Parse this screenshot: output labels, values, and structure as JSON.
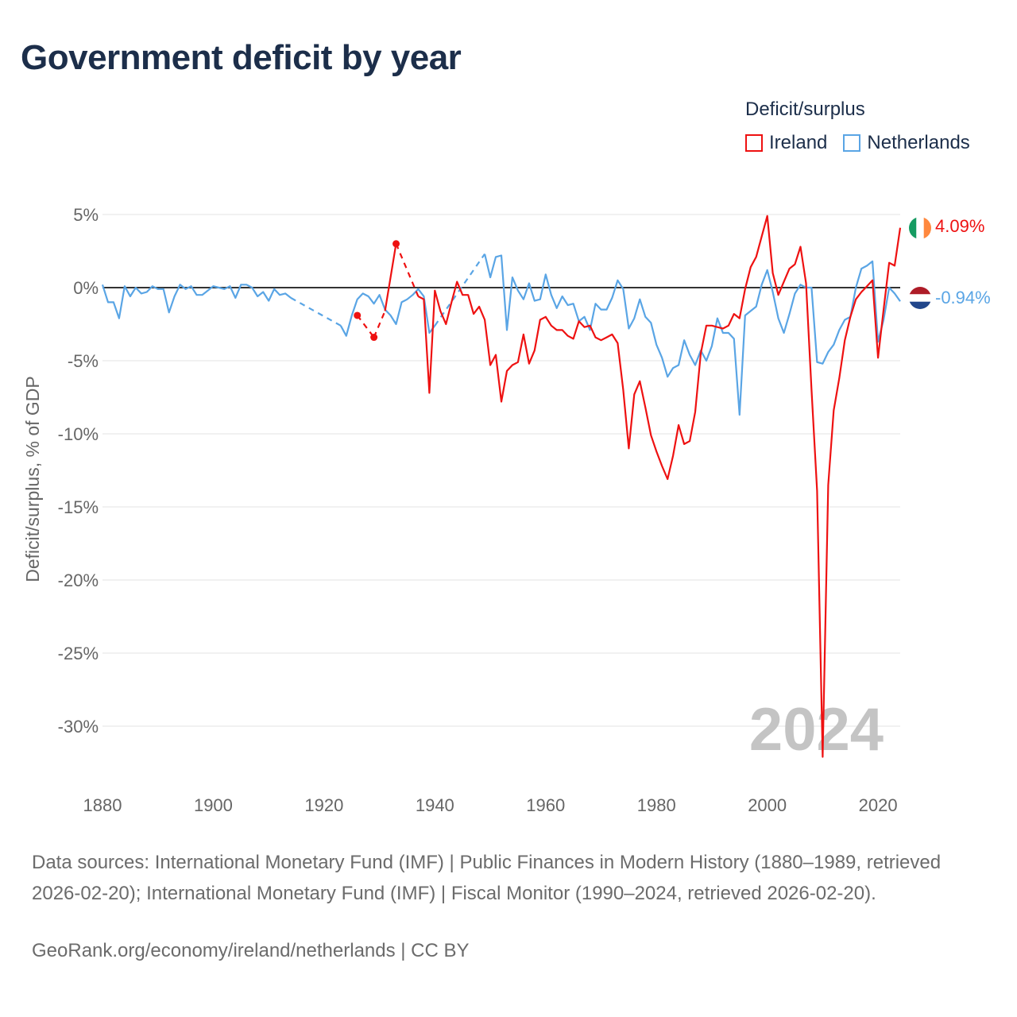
{
  "title": "Government deficit by year",
  "legend": {
    "title": "Deficit/surplus",
    "items": [
      {
        "label": "Ireland",
        "color": "#ee1111"
      },
      {
        "label": "Netherlands",
        "color": "#5aa5e5"
      }
    ]
  },
  "year_watermark": "2024",
  "end_labels": {
    "ireland": "4.09%",
    "netherlands": "-0.94%"
  },
  "footer": {
    "sources": "Data sources: International Monetary Fund (IMF) | Public Finances in Modern History (1880–1989, retrieved 2026-02-20); International Monetary Fund (IMF) | Fiscal Monitor (1990–2024, retrieved 2026-02-20).",
    "credit": "GeoRank.org/economy/ireland/netherlands | CC BY"
  },
  "chart_data": {
    "type": "line",
    "title": "Government deficit by year",
    "xlabel": "",
    "ylabel": "Deficit/surplus, % of GDP",
    "xlim": [
      1880,
      2024
    ],
    "ylim": [
      -35,
      5
    ],
    "x_ticks": [
      1880,
      1900,
      1920,
      1940,
      1960,
      1980,
      2000,
      2020
    ],
    "x_tick_labels": [
      "1880",
      "1900",
      "1920",
      "1940",
      "1960",
      "1980",
      "2000",
      "2020"
    ],
    "y_ticks": [
      5,
      0,
      -5,
      -10,
      -15,
      -20,
      -25,
      -30
    ],
    "y_tick_labels": [
      "5%",
      "0%",
      "-5%",
      "-10%",
      "-15%",
      "-20%",
      "-25%",
      "-30%"
    ],
    "grid": true,
    "legend_position": "top-right",
    "series": [
      {
        "name": "Ireland",
        "color": "#ee1111",
        "points": [
          [
            1926,
            -1.9
          ],
          [
            1929,
            -3.4
          ],
          [
            1931,
            -1.6
          ],
          [
            1933,
            3.0
          ],
          [
            1937,
            -0.6
          ],
          [
            1938,
            -0.8
          ],
          [
            1939,
            -7.2
          ],
          [
            1940,
            -0.2
          ],
          [
            1941,
            -1.6
          ],
          [
            1942,
            -2.5
          ],
          [
            1943,
            -1.0
          ],
          [
            1944,
            0.4
          ],
          [
            1945,
            -0.5
          ],
          [
            1946,
            -0.5
          ],
          [
            1947,
            -1.8
          ],
          [
            1948,
            -1.3
          ],
          [
            1949,
            -2.2
          ],
          [
            1950,
            -5.3
          ],
          [
            1951,
            -4.6
          ],
          [
            1952,
            -7.8
          ],
          [
            1953,
            -5.7
          ],
          [
            1954,
            -5.3
          ],
          [
            1955,
            -5.1
          ],
          [
            1956,
            -3.2
          ],
          [
            1957,
            -5.2
          ],
          [
            1958,
            -4.3
          ],
          [
            1959,
            -2.2
          ],
          [
            1960,
            -2.0
          ],
          [
            1961,
            -2.6
          ],
          [
            1962,
            -2.9
          ],
          [
            1963,
            -2.9
          ],
          [
            1964,
            -3.3
          ],
          [
            1965,
            -3.5
          ],
          [
            1966,
            -2.3
          ],
          [
            1967,
            -2.7
          ],
          [
            1968,
            -2.6
          ],
          [
            1969,
            -3.4
          ],
          [
            1970,
            -3.6
          ],
          [
            1971,
            -3.4
          ],
          [
            1972,
            -3.2
          ],
          [
            1973,
            -3.8
          ],
          [
            1974,
            -7.0
          ],
          [
            1975,
            -11.0
          ],
          [
            1976,
            -7.3
          ],
          [
            1977,
            -6.4
          ],
          [
            1978,
            -8.2
          ],
          [
            1979,
            -10.1
          ],
          [
            1980,
            -11.2
          ],
          [
            1981,
            -12.2
          ],
          [
            1982,
            -13.1
          ],
          [
            1983,
            -11.5
          ],
          [
            1984,
            -9.4
          ],
          [
            1985,
            -10.7
          ],
          [
            1986,
            -10.5
          ],
          [
            1987,
            -8.5
          ],
          [
            1988,
            -4.5
          ],
          [
            1989,
            -2.6
          ],
          [
            1990,
            -2.6
          ],
          [
            1991,
            -2.7
          ],
          [
            1992,
            -2.8
          ],
          [
            1993,
            -2.6
          ],
          [
            1994,
            -1.8
          ],
          [
            1995,
            -2.1
          ],
          [
            1996,
            -0.1
          ],
          [
            1997,
            1.4
          ],
          [
            1998,
            2.1
          ],
          [
            1999,
            3.5
          ],
          [
            2000,
            4.9
          ],
          [
            2001,
            1.0
          ],
          [
            2002,
            -0.5
          ],
          [
            2003,
            0.4
          ],
          [
            2004,
            1.3
          ],
          [
            2005,
            1.6
          ],
          [
            2006,
            2.8
          ],
          [
            2007,
            0.3
          ],
          [
            2008,
            -7.0
          ],
          [
            2009,
            -13.9
          ],
          [
            2010,
            -32.1
          ],
          [
            2011,
            -13.5
          ],
          [
            2012,
            -8.4
          ],
          [
            2013,
            -6.2
          ],
          [
            2014,
            -3.6
          ],
          [
            2015,
            -2.0
          ],
          [
            2016,
            -0.8
          ],
          [
            2017,
            -0.3
          ],
          [
            2018,
            0.1
          ],
          [
            2019,
            0.5
          ],
          [
            2020,
            -4.8
          ],
          [
            2021,
            -1.5
          ],
          [
            2022,
            1.7
          ],
          [
            2023,
            1.5
          ],
          [
            2024,
            4.09
          ]
        ],
        "gaps_after": [
          1926,
          1929,
          1933
        ],
        "marker_years": [
          1926,
          1929,
          1933
        ]
      },
      {
        "name": "Netherlands",
        "color": "#5aa5e5",
        "points": [
          [
            1880,
            0.2
          ],
          [
            1881,
            -1.0
          ],
          [
            1882,
            -1.0
          ],
          [
            1883,
            -2.1
          ],
          [
            1884,
            0.1
          ],
          [
            1885,
            -0.6
          ],
          [
            1886,
            0.0
          ],
          [
            1887,
            -0.4
          ],
          [
            1888,
            -0.3
          ],
          [
            1889,
            0.1
          ],
          [
            1890,
            -0.1
          ],
          [
            1891,
            -0.1
          ],
          [
            1892,
            -1.7
          ],
          [
            1893,
            -0.6
          ],
          [
            1894,
            0.2
          ],
          [
            1895,
            -0.1
          ],
          [
            1896,
            0.1
          ],
          [
            1897,
            -0.5
          ],
          [
            1898,
            -0.5
          ],
          [
            1899,
            -0.2
          ],
          [
            1900,
            0.1
          ],
          [
            1901,
            0.0
          ],
          [
            1902,
            -0.1
          ],
          [
            1903,
            0.1
          ],
          [
            1904,
            -0.7
          ],
          [
            1905,
            0.2
          ],
          [
            1906,
            0.2
          ],
          [
            1907,
            0.0
          ],
          [
            1908,
            -0.6
          ],
          [
            1909,
            -0.3
          ],
          [
            1910,
            -0.9
          ],
          [
            1911,
            -0.1
          ],
          [
            1912,
            -0.5
          ],
          [
            1913,
            -0.4
          ],
          [
            1914,
            -0.7
          ],
          [
            1923,
            -2.6
          ],
          [
            1924,
            -3.3
          ],
          [
            1925,
            -1.9
          ],
          [
            1926,
            -0.8
          ],
          [
            1927,
            -0.4
          ],
          [
            1928,
            -0.6
          ],
          [
            1929,
            -1.1
          ],
          [
            1930,
            -0.5
          ],
          [
            1931,
            -1.5
          ],
          [
            1932,
            -1.9
          ],
          [
            1933,
            -2.5
          ],
          [
            1934,
            -1.0
          ],
          [
            1935,
            -0.8
          ],
          [
            1936,
            -0.5
          ],
          [
            1937,
            -0.1
          ],
          [
            1938,
            -0.6
          ],
          [
            1939,
            -3.1
          ],
          [
            1940,
            -2.6
          ],
          [
            1949,
            2.3
          ],
          [
            1950,
            0.7
          ],
          [
            1951,
            2.1
          ],
          [
            1952,
            2.2
          ],
          [
            1953,
            -2.9
          ],
          [
            1954,
            0.7
          ],
          [
            1955,
            -0.2
          ],
          [
            1956,
            -0.8
          ],
          [
            1957,
            0.3
          ],
          [
            1958,
            -0.9
          ],
          [
            1959,
            -0.8
          ],
          [
            1960,
            0.9
          ],
          [
            1961,
            -0.5
          ],
          [
            1962,
            -1.4
          ],
          [
            1963,
            -0.6
          ],
          [
            1964,
            -1.2
          ],
          [
            1965,
            -1.1
          ],
          [
            1966,
            -2.3
          ],
          [
            1967,
            -2.0
          ],
          [
            1968,
            -2.9
          ],
          [
            1969,
            -1.1
          ],
          [
            1970,
            -1.5
          ],
          [
            1971,
            -1.5
          ],
          [
            1972,
            -0.7
          ],
          [
            1973,
            0.5
          ],
          [
            1974,
            -0.1
          ],
          [
            1975,
            -2.8
          ],
          [
            1976,
            -2.1
          ],
          [
            1977,
            -0.8
          ],
          [
            1978,
            -2.0
          ],
          [
            1979,
            -2.4
          ],
          [
            1980,
            -3.9
          ],
          [
            1981,
            -4.8
          ],
          [
            1982,
            -6.1
          ],
          [
            1983,
            -5.5
          ],
          [
            1984,
            -5.3
          ],
          [
            1985,
            -3.6
          ],
          [
            1986,
            -4.6
          ],
          [
            1987,
            -5.3
          ],
          [
            1988,
            -4.3
          ],
          [
            1989,
            -5.0
          ],
          [
            1990,
            -4.0
          ],
          [
            1991,
            -2.1
          ],
          [
            1992,
            -3.1
          ],
          [
            1993,
            -3.1
          ],
          [
            1994,
            -3.5
          ],
          [
            1995,
            -8.7
          ],
          [
            1996,
            -1.9
          ],
          [
            1997,
            -1.6
          ],
          [
            1998,
            -1.3
          ],
          [
            1999,
            0.2
          ],
          [
            2000,
            1.2
          ],
          [
            2001,
            -0.3
          ],
          [
            2002,
            -2.1
          ],
          [
            2003,
            -3.1
          ],
          [
            2004,
            -1.8
          ],
          [
            2005,
            -0.4
          ],
          [
            2006,
            0.2
          ],
          [
            2007,
            0.0
          ],
          [
            2008,
            0.0
          ],
          [
            2009,
            -5.1
          ],
          [
            2010,
            -5.2
          ],
          [
            2011,
            -4.4
          ],
          [
            2012,
            -3.9
          ],
          [
            2013,
            -2.9
          ],
          [
            2014,
            -2.2
          ],
          [
            2015,
            -2.0
          ],
          [
            2016,
            0.0
          ],
          [
            2017,
            1.3
          ],
          [
            2018,
            1.5
          ],
          [
            2019,
            1.8
          ],
          [
            2020,
            -3.7
          ],
          [
            2021,
            -2.2
          ],
          [
            2022,
            0.0
          ],
          [
            2023,
            -0.4
          ],
          [
            2024,
            -0.94
          ]
        ],
        "gaps_after": [
          1914,
          1940
        ]
      }
    ]
  }
}
